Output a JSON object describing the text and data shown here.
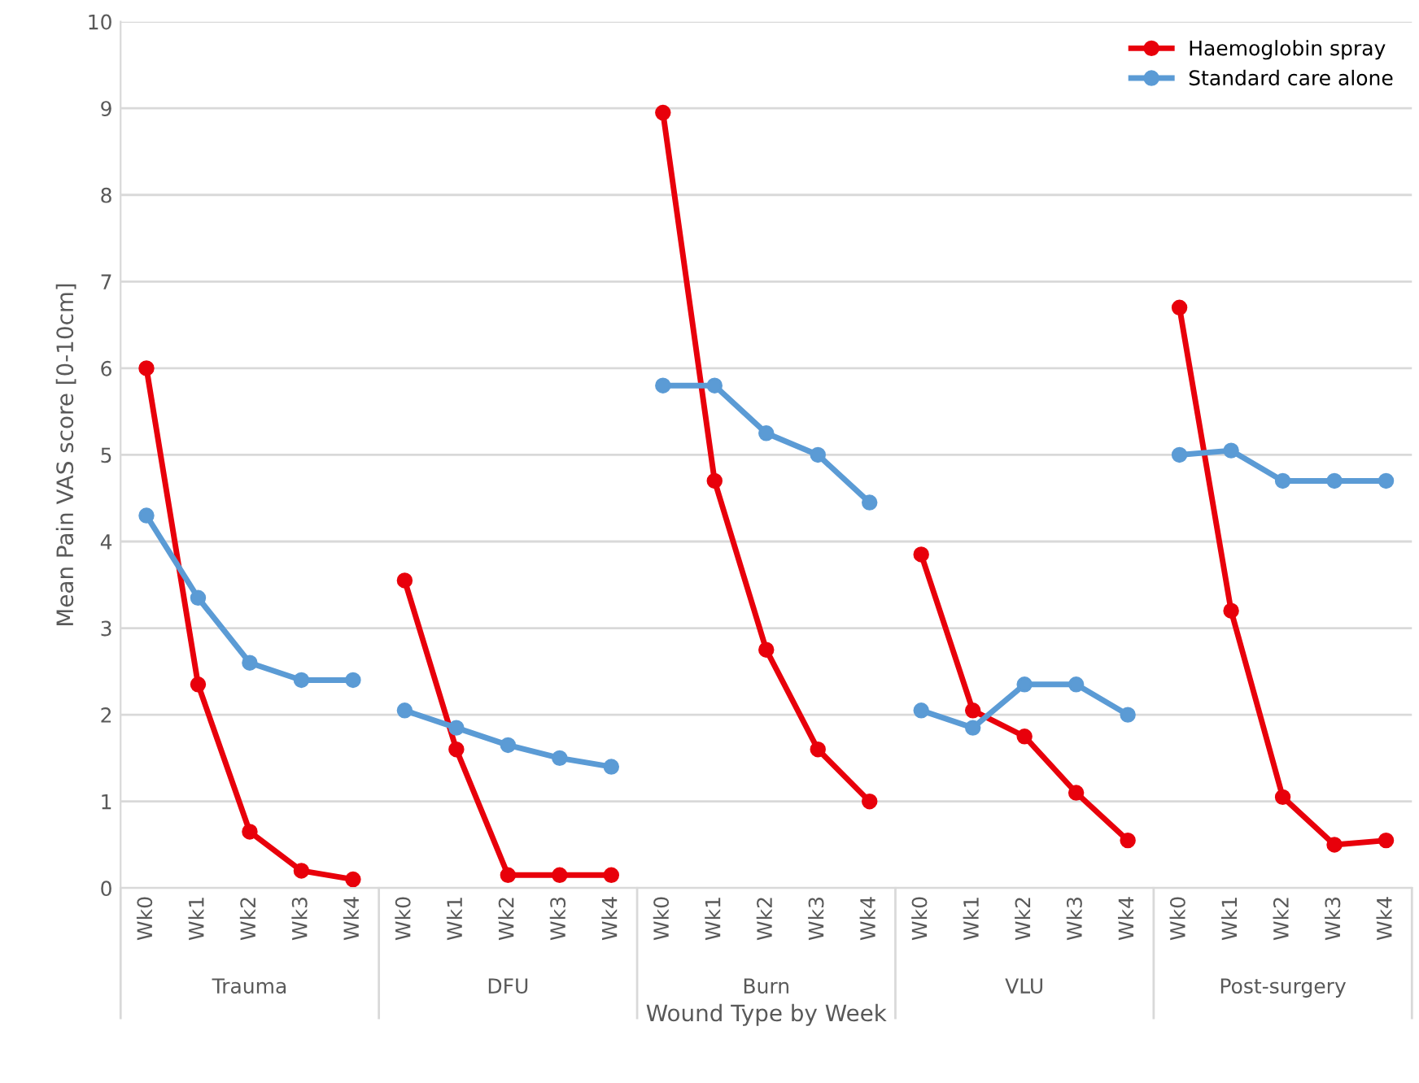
{
  "chart_data": {
    "type": "line",
    "xlabel": "Wound Type by Week",
    "ylabel": "Mean Pain VAS score [0-10cm]",
    "categories": [
      "Wk0",
      "Wk1",
      "Wk2",
      "Wk3",
      "Wk4",
      "Wk0",
      "Wk1",
      "Wk2",
      "Wk3",
      "Wk4",
      "Wk0",
      "Wk1",
      "Wk2",
      "Wk3",
      "Wk4",
      "Wk0",
      "Wk1",
      "Wk2",
      "Wk3",
      "Wk4",
      "Wk0",
      "Wk1",
      "Wk2",
      "Wk3",
      "Wk4"
    ],
    "series": [
      {
        "name": "Haemoglobin spray",
        "color": "#e8000b",
        "values": [
          6.0,
          2.35,
          0.65,
          0.2,
          0.1,
          null,
          null,
          null,
          null,
          null,
          null,
          null,
          null,
          null,
          null,
          null,
          null,
          null,
          null,
          null,
          null,
          null,
          null,
          null,
          null
        ]
      },
      {
        "name": "Standard care alone",
        "color": "#5b9bd5",
        "values": [
          4.3,
          3.35,
          2.6,
          2.4,
          2.4,
          null,
          null,
          null,
          null,
          null,
          null,
          null,
          null,
          null,
          null,
          null,
          null,
          null,
          null,
          null,
          null,
          null,
          null,
          null,
          null
        ]
      },
      {
        "color": "#e8000b",
        "values": [
          null,
          null,
          null,
          null,
          null,
          3.55,
          1.6,
          0.15,
          0.15,
          0.15,
          null,
          null,
          null,
          null,
          null,
          null,
          null,
          null,
          null,
          null,
          null,
          null,
          null,
          null,
          null
        ]
      },
      {
        "color": "#5b9bd5",
        "values": [
          null,
          null,
          null,
          null,
          null,
          2.05,
          1.85,
          1.65,
          1.5,
          1.4,
          null,
          null,
          null,
          null,
          null,
          null,
          null,
          null,
          null,
          null,
          null,
          null,
          null,
          null,
          null
        ]
      },
      {
        "color": "#e8000b",
        "values": [
          null,
          null,
          null,
          null,
          null,
          null,
          null,
          null,
          null,
          null,
          8.95,
          4.7,
          2.75,
          1.6,
          1.0,
          null,
          null,
          null,
          null,
          null,
          null,
          null,
          null,
          null,
          null
        ]
      },
      {
        "color": "#5b9bd5",
        "values": [
          null,
          null,
          null,
          null,
          null,
          null,
          null,
          null,
          null,
          null,
          5.8,
          5.8,
          5.25,
          5.0,
          4.45,
          null,
          null,
          null,
          null,
          null,
          null,
          null,
          null,
          null,
          null
        ]
      },
      {
        "color": "#e8000b",
        "values": [
          null,
          null,
          null,
          null,
          null,
          null,
          null,
          null,
          null,
          null,
          null,
          null,
          null,
          null,
          null,
          3.85,
          2.05,
          1.75,
          1.1,
          0.55,
          null,
          null,
          null,
          null,
          null
        ]
      },
      {
        "color": "#5b9bd5",
        "values": [
          null,
          null,
          null,
          null,
          null,
          null,
          null,
          null,
          null,
          null,
          null,
          null,
          null,
          null,
          null,
          2.05,
          1.85,
          2.35,
          2.35,
          2.0,
          null,
          null,
          null,
          null,
          null
        ]
      },
      {
        "color": "#e8000b",
        "values": [
          null,
          null,
          null,
          null,
          null,
          null,
          null,
          null,
          null,
          null,
          null,
          null,
          null,
          null,
          null,
          null,
          null,
          null,
          null,
          null,
          6.7,
          3.2,
          1.05,
          0.5,
          0.55
        ]
      },
      {
        "color": "#5b9bd5",
        "values": [
          null,
          null,
          null,
          null,
          null,
          null,
          null,
          null,
          null,
          null,
          null,
          null,
          null,
          null,
          null,
          null,
          null,
          null,
          null,
          null,
          5.0,
          5.05,
          4.7,
          4.7,
          4.7
        ]
      }
    ],
    "annotations": [
      "Trauma",
      "DFU",
      "Burn",
      "VLU",
      "Post-surgery"
    ],
    "ylim": [
      0,
      10
    ],
    "yticks": [
      0,
      1,
      2,
      3,
      4,
      5,
      6,
      7,
      8,
      9,
      10
    ],
    "grid": "y",
    "legend": "top right",
    "marker": "circle",
    "line_style": "solid"
  }
}
